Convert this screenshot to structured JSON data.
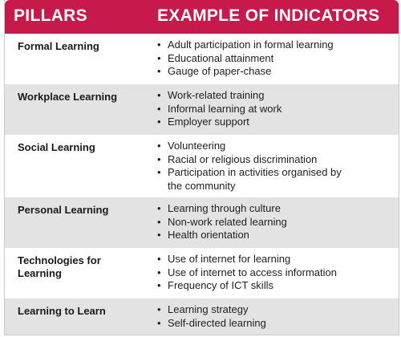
{
  "header": {
    "pillars": "PILLARS",
    "indicators": "EXAMPLE OF INDICATORS"
  },
  "rows": [
    {
      "pillar": "Formal Learning",
      "indicators": [
        "Adult participation in formal learning",
        "Educational attainment",
        "Gauge of paper-chase"
      ]
    },
    {
      "pillar": "Workplace Learning",
      "indicators": [
        "Work-related training",
        "Informal learning at work",
        "Employer support"
      ]
    },
    {
      "pillar": "Social Learning",
      "indicators": [
        "Volunteering",
        "Racial or religious discrimination",
        "Participation in activities organised by",
        "the community"
      ]
    },
    {
      "pillar": "Personal Learning",
      "indicators": [
        "Learning through culture",
        "Non-work related learning",
        "Health orientation"
      ]
    },
    {
      "pillar": "Technologies for Learning",
      "indicators": [
        "Use of internet for learning",
        "Use of internet to access information",
        "Frequency of ICT skills"
      ]
    },
    {
      "pillar": "Learning to Learn",
      "indicators": [
        "Learning strategy",
        "Self-directed learning"
      ]
    }
  ],
  "colors": {
    "header_bg": "#c7194a",
    "row_alt_bg": "#e3e3e3"
  }
}
